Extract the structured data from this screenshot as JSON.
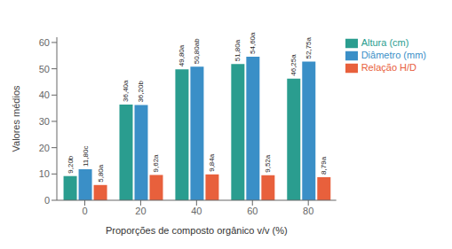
{
  "chart_data": {
    "type": "bar",
    "categories": [
      "0",
      "20",
      "40",
      "60",
      "80"
    ],
    "series": [
      {
        "name": "Altura (cm)",
        "color": "#2a9d8f",
        "values": [
          9.2,
          36.4,
          49.8,
          51.8,
          46.25
        ],
        "value_labels": [
          "9,20b",
          "36,40a",
          "49,80a",
          "51,80a",
          "46,25a"
        ]
      },
      {
        "name": "Diâmetro (mm)",
        "color": "#3a8fc7",
        "values": [
          11.8,
          36.2,
          50.8,
          54.6,
          52.75
        ],
        "value_labels": [
          "11,80c",
          "36,20b",
          "50,80ab",
          "54,60a",
          "52,75a"
        ]
      },
      {
        "name": "Relação H/D",
        "color": "#e8603c",
        "values": [
          5.8,
          9.62,
          9.84,
          9.52,
          8.79
        ],
        "value_labels": [
          "5,80a",
          "9,62a",
          "9,84a",
          "9,52a",
          "8,79a"
        ]
      }
    ],
    "xlabel": "Proporções de composto orgânico v/v (%)",
    "ylabel": "Valores médios",
    "ylim": [
      0,
      62
    ],
    "yticks": [
      0,
      10,
      20,
      30,
      40,
      50,
      60
    ],
    "grid": false,
    "legend": "right"
  }
}
